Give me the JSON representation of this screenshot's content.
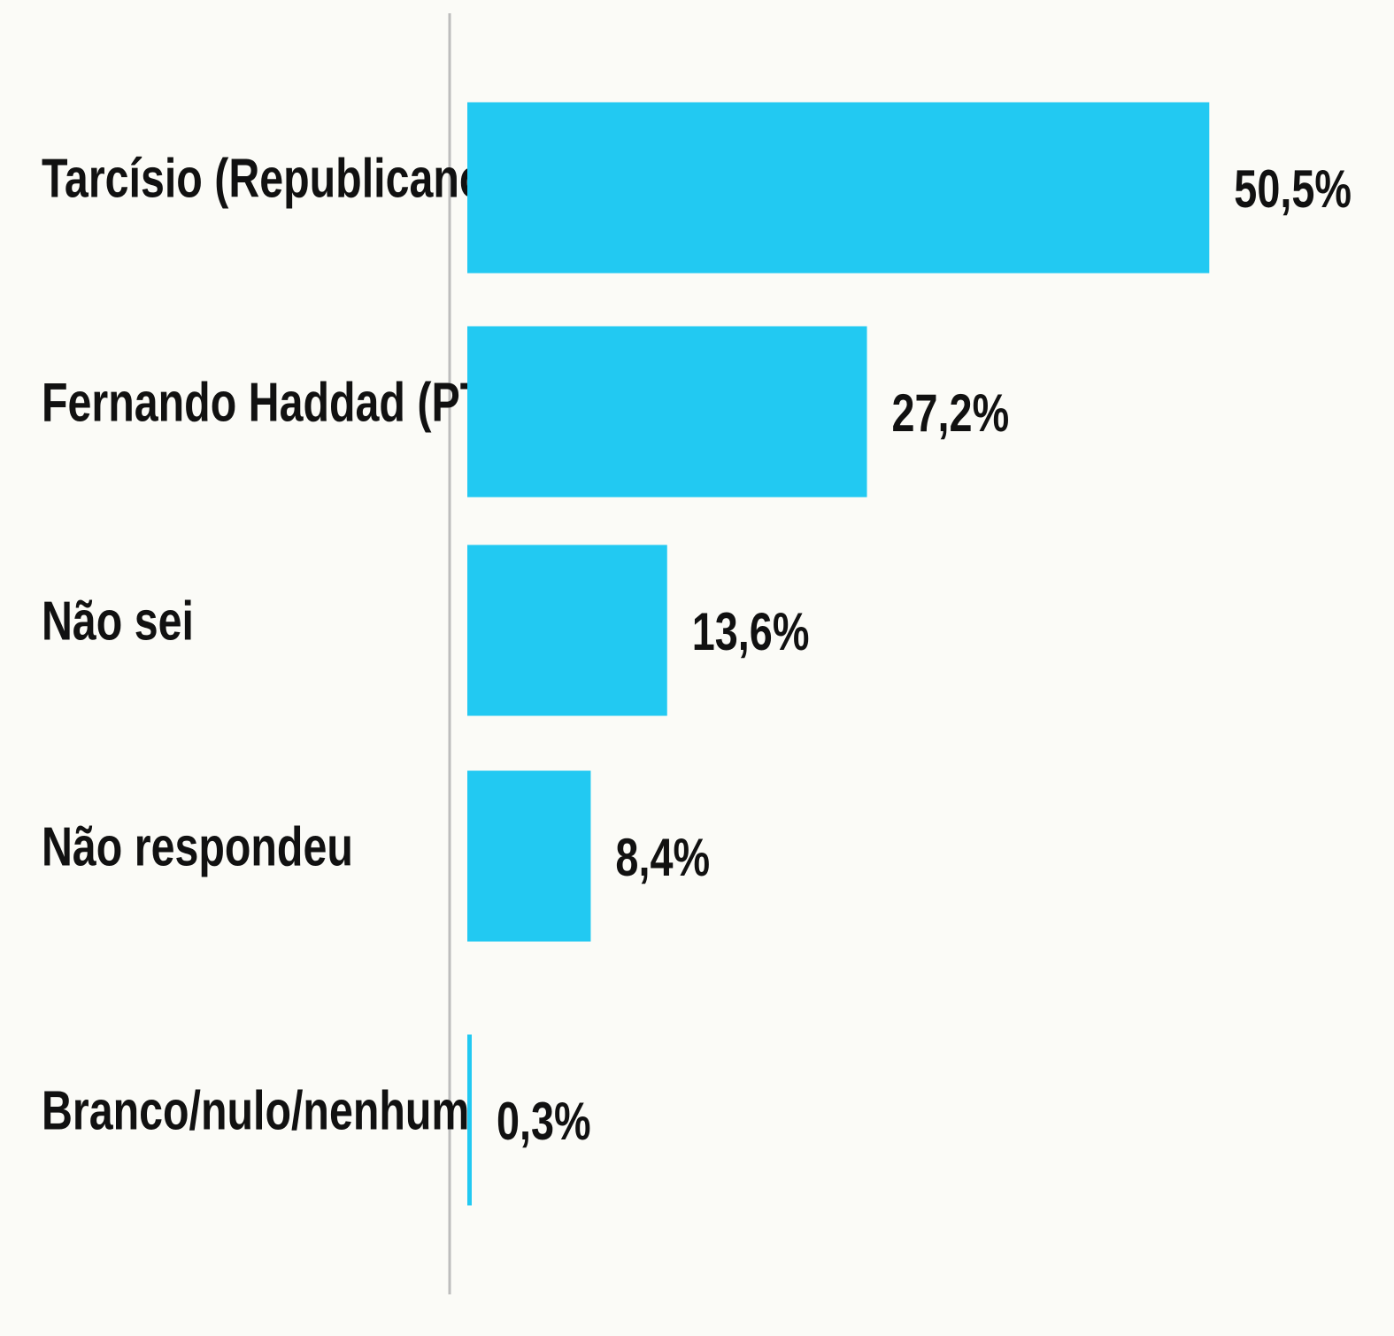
{
  "chart_data": {
    "type": "hbar",
    "categories": [
      "Tarcísio (Republicanos)",
      "Fernando Haddad (PT)",
      "Não sei",
      "Não respondeu",
      "Branco/nulo/nenhum"
    ],
    "values": [
      50.5,
      27.2,
      13.6,
      8.4,
      0.3
    ],
    "value_labels": [
      "50,5%",
      "27,2%",
      "13,6%",
      "8,4%",
      "0,3%"
    ],
    "color": "#22c9f2"
  }
}
